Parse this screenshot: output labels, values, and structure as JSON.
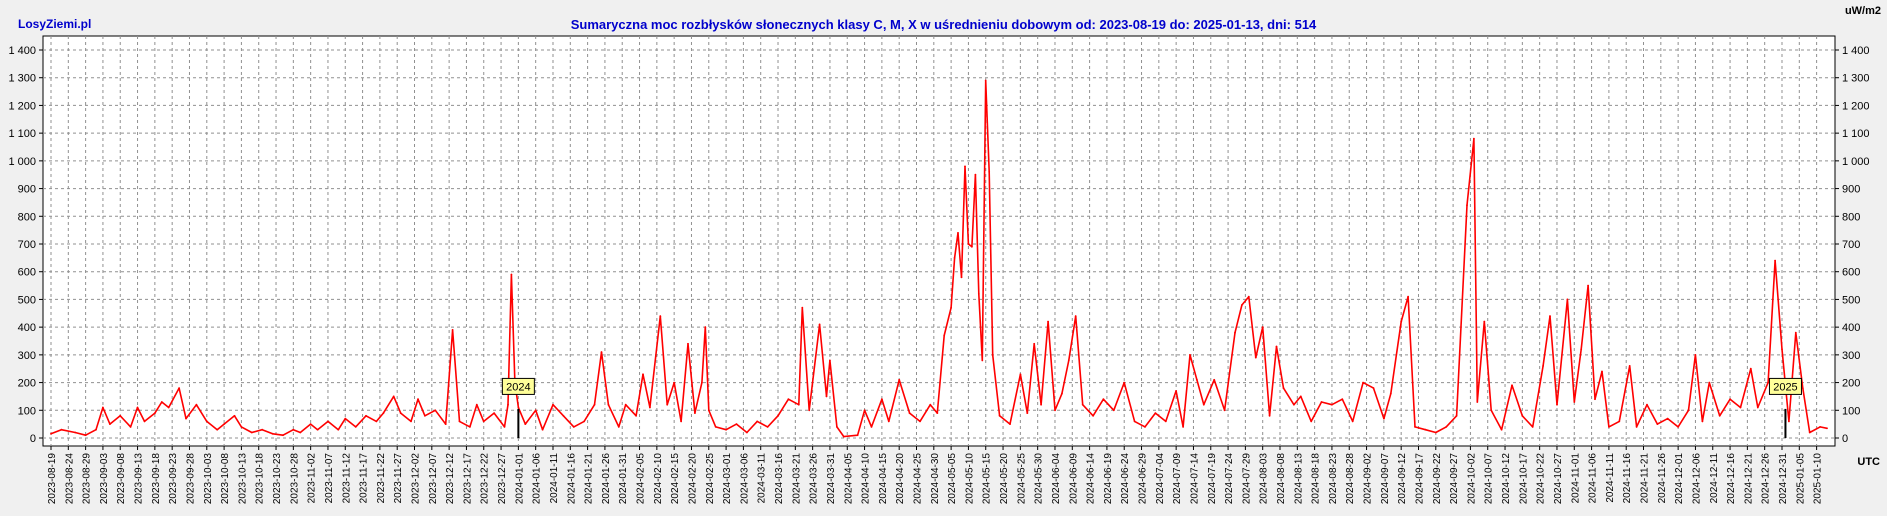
{
  "header": {
    "site": "LosyZiemi.pl",
    "title": "Sumaryczna moc rozbłysków słonecznych klasy C, M, X w uśrednieniu dobowym od: 2023-08-19 do: 2025-01-13, dni: 514",
    "unit": "uW/m2",
    "xaxis_label": "UTC"
  },
  "colors": {
    "line": "#ff0000",
    "plot_bg": "#ffffff",
    "grid": "#909090",
    "title": "#0000cc",
    "marker_bg": "#ffff99"
  },
  "chart_data": {
    "type": "line",
    "title": "Sumaryczna moc rozbłysków słonecznych klasy C, M, X w uśrednieniu dobowym od: 2023-08-19 do: 2025-01-13, dni: 514",
    "ylabel": "uW/m2",
    "xlabel": "UTC",
    "ylim": [
      0,
      1400
    ],
    "yticks": [
      0,
      100,
      200,
      300,
      400,
      500,
      600,
      700,
      800,
      900,
      1000,
      1100,
      1200,
      1300,
      1400
    ],
    "ytick_labels": [
      "0",
      "100",
      "200",
      "300",
      "400",
      "500",
      "600",
      "700",
      "800",
      "900",
      "1 000",
      "1 100",
      "1 200",
      "1 300",
      "1 400"
    ],
    "grid": true,
    "x_start": "2023-08-19",
    "x_end": "2025-01-13",
    "days": 514,
    "xtick_labels": [
      "2023-08-19",
      "2023-08-24",
      "2023-08-29",
      "2023-09-03",
      "2023-09-08",
      "2023-09-13",
      "2023-09-18",
      "2023-09-23",
      "2023-09-28",
      "2023-10-03",
      "2023-10-08",
      "2023-10-13",
      "2023-10-18",
      "2023-10-23",
      "2023-10-28",
      "2023-11-02",
      "2023-11-07",
      "2023-11-12",
      "2023-11-17",
      "2023-11-22",
      "2023-11-27",
      "2023-12-02",
      "2023-12-07",
      "2023-12-12",
      "2023-12-17",
      "2023-12-22",
      "2023-12-27",
      "2024-01-01",
      "2024-01-06",
      "2024-01-11",
      "2024-01-16",
      "2024-01-21",
      "2024-01-26",
      "2024-01-31",
      "2024-02-05",
      "2024-02-10",
      "2024-02-15",
      "2024-02-20",
      "2024-02-25",
      "2024-03-01",
      "2024-03-06",
      "2024-03-11",
      "2024-03-16",
      "2024-03-21",
      "2024-03-26",
      "2024-03-31",
      "2024-04-05",
      "2024-04-10",
      "2024-04-15",
      "2024-04-20",
      "2024-04-25",
      "2024-04-30",
      "2024-05-05",
      "2024-05-10",
      "2024-05-15",
      "2024-05-20",
      "2024-05-25",
      "2024-05-30",
      "2024-06-04",
      "2024-06-09",
      "2024-06-14",
      "2024-06-19",
      "2024-06-24",
      "2024-06-29",
      "2024-07-04",
      "2024-07-09",
      "2024-07-14",
      "2024-07-19",
      "2024-07-24",
      "2024-07-29",
      "2024-08-03",
      "2024-08-08",
      "2024-08-13",
      "2024-08-18",
      "2024-08-23",
      "2024-08-28",
      "2024-09-02",
      "2024-09-07",
      "2024-09-12",
      "2024-09-17",
      "2024-09-22",
      "2024-09-27",
      "2024-10-02",
      "2024-10-07",
      "2024-10-12",
      "2024-10-17",
      "2024-10-22",
      "2024-10-27",
      "2024-11-01",
      "2024-11-06",
      "2024-11-11",
      "2024-11-16",
      "2024-11-21",
      "2024-11-26",
      "2024-12-01",
      "2024-12-06",
      "2024-12-11",
      "2024-12-16",
      "2024-12-21",
      "2024-12-26",
      "2024-12-31",
      "2025-01-05",
      "2025-01-10"
    ],
    "year_markers": [
      {
        "label": "2024",
        "date": "2024-01-01"
      },
      {
        "label": "2025",
        "date": "2025-01-01"
      }
    ],
    "series": [
      {
        "points": [
          [
            "2023-08-19",
            15
          ],
          [
            "2023-08-22",
            30
          ],
          [
            "2023-08-26",
            20
          ],
          [
            "2023-08-29",
            10
          ],
          [
            "2023-09-01",
            30
          ],
          [
            "2023-09-03",
            110
          ],
          [
            "2023-09-05",
            50
          ],
          [
            "2023-09-08",
            80
          ],
          [
            "2023-09-11",
            40
          ],
          [
            "2023-09-13",
            110
          ],
          [
            "2023-09-15",
            60
          ],
          [
            "2023-09-18",
            90
          ],
          [
            "2023-09-20",
            130
          ],
          [
            "2023-09-22",
            110
          ],
          [
            "2023-09-25",
            180
          ],
          [
            "2023-09-27",
            70
          ],
          [
            "2023-09-30",
            120
          ],
          [
            "2023-10-03",
            60
          ],
          [
            "2023-10-06",
            30
          ],
          [
            "2023-10-08",
            50
          ],
          [
            "2023-10-11",
            80
          ],
          [
            "2023-10-13",
            40
          ],
          [
            "2023-10-16",
            20
          ],
          [
            "2023-10-19",
            30
          ],
          [
            "2023-10-22",
            15
          ],
          [
            "2023-10-25",
            10
          ],
          [
            "2023-10-28",
            30
          ],
          [
            "2023-10-30",
            20
          ],
          [
            "2023-11-02",
            50
          ],
          [
            "2023-11-04",
            30
          ],
          [
            "2023-11-07",
            60
          ],
          [
            "2023-11-10",
            30
          ],
          [
            "2023-11-12",
            70
          ],
          [
            "2023-11-15",
            40
          ],
          [
            "2023-11-18",
            80
          ],
          [
            "2023-11-21",
            60
          ],
          [
            "2023-11-23",
            90
          ],
          [
            "2023-11-26",
            150
          ],
          [
            "2023-11-28",
            90
          ],
          [
            "2023-12-01",
            60
          ],
          [
            "2023-12-03",
            140
          ],
          [
            "2023-12-05",
            80
          ],
          [
            "2023-12-08",
            100
          ],
          [
            "2023-12-11",
            50
          ],
          [
            "2023-12-13",
            390
          ],
          [
            "2023-12-15",
            60
          ],
          [
            "2023-12-18",
            40
          ],
          [
            "2023-12-20",
            120
          ],
          [
            "2023-12-22",
            60
          ],
          [
            "2023-12-25",
            90
          ],
          [
            "2023-12-28",
            40
          ],
          [
            "2023-12-29",
            120
          ],
          [
            "2023-12-30",
            590
          ],
          [
            "2023-12-31",
            200
          ],
          [
            "2024-01-01",
            110
          ],
          [
            "2024-01-03",
            50
          ],
          [
            "2024-01-06",
            100
          ],
          [
            "2024-01-08",
            30
          ],
          [
            "2024-01-11",
            120
          ],
          [
            "2024-01-14",
            80
          ],
          [
            "2024-01-17",
            40
          ],
          [
            "2024-01-20",
            60
          ],
          [
            "2024-01-23",
            120
          ],
          [
            "2024-01-25",
            310
          ],
          [
            "2024-01-27",
            120
          ],
          [
            "2024-01-30",
            40
          ],
          [
            "2024-02-01",
            120
          ],
          [
            "2024-02-04",
            80
          ],
          [
            "2024-02-06",
            230
          ],
          [
            "2024-02-08",
            110
          ],
          [
            "2024-02-11",
            440
          ],
          [
            "2024-02-13",
            120
          ],
          [
            "2024-02-15",
            200
          ],
          [
            "2024-02-17",
            60
          ],
          [
            "2024-02-19",
            340
          ],
          [
            "2024-02-21",
            90
          ],
          [
            "2024-02-23",
            200
          ],
          [
            "2024-02-24",
            400
          ],
          [
            "2024-02-25",
            100
          ],
          [
            "2024-02-27",
            40
          ],
          [
            "2024-03-01",
            30
          ],
          [
            "2024-03-04",
            50
          ],
          [
            "2024-03-07",
            20
          ],
          [
            "2024-03-10",
            60
          ],
          [
            "2024-03-13",
            40
          ],
          [
            "2024-03-16",
            80
          ],
          [
            "2024-03-19",
            140
          ],
          [
            "2024-03-22",
            120
          ],
          [
            "2024-03-23",
            470
          ],
          [
            "2024-03-25",
            100
          ],
          [
            "2024-03-28",
            410
          ],
          [
            "2024-03-30",
            150
          ],
          [
            "2024-03-31",
            280
          ],
          [
            "2024-04-02",
            40
          ],
          [
            "2024-04-04",
            5
          ],
          [
            "2024-04-08",
            10
          ],
          [
            "2024-04-10",
            100
          ],
          [
            "2024-04-12",
            40
          ],
          [
            "2024-04-15",
            140
          ],
          [
            "2024-04-17",
            60
          ],
          [
            "2024-04-20",
            210
          ],
          [
            "2024-04-23",
            90
          ],
          [
            "2024-04-26",
            60
          ],
          [
            "2024-04-29",
            120
          ],
          [
            "2024-05-01",
            90
          ],
          [
            "2024-05-03",
            370
          ],
          [
            "2024-05-05",
            470
          ],
          [
            "2024-05-06",
            650
          ],
          [
            "2024-05-07",
            740
          ],
          [
            "2024-05-08",
            580
          ],
          [
            "2024-05-09",
            980
          ],
          [
            "2024-05-10",
            700
          ],
          [
            "2024-05-11",
            690
          ],
          [
            "2024-05-12",
            950
          ],
          [
            "2024-05-13",
            520
          ],
          [
            "2024-05-14",
            280
          ],
          [
            "2024-05-15",
            1290
          ],
          [
            "2024-05-16",
            960
          ],
          [
            "2024-05-17",
            300
          ],
          [
            "2024-05-19",
            80
          ],
          [
            "2024-05-22",
            50
          ],
          [
            "2024-05-25",
            230
          ],
          [
            "2024-05-27",
            90
          ],
          [
            "2024-05-29",
            340
          ],
          [
            "2024-05-31",
            120
          ],
          [
            "2024-06-02",
            420
          ],
          [
            "2024-06-04",
            100
          ],
          [
            "2024-06-06",
            160
          ],
          [
            "2024-06-08",
            280
          ],
          [
            "2024-06-10",
            440
          ],
          [
            "2024-06-12",
            120
          ],
          [
            "2024-06-15",
            80
          ],
          [
            "2024-06-18",
            140
          ],
          [
            "2024-06-21",
            100
          ],
          [
            "2024-06-24",
            200
          ],
          [
            "2024-06-27",
            60
          ],
          [
            "2024-06-30",
            40
          ],
          [
            "2024-07-03",
            90
          ],
          [
            "2024-07-06",
            60
          ],
          [
            "2024-07-09",
            170
          ],
          [
            "2024-07-11",
            40
          ],
          [
            "2024-07-13",
            300
          ],
          [
            "2024-07-15",
            210
          ],
          [
            "2024-07-17",
            120
          ],
          [
            "2024-07-20",
            210
          ],
          [
            "2024-07-23",
            100
          ],
          [
            "2024-07-26",
            380
          ],
          [
            "2024-07-28",
            480
          ],
          [
            "2024-07-30",
            510
          ],
          [
            "2024-08-01",
            290
          ],
          [
            "2024-08-03",
            400
          ],
          [
            "2024-08-05",
            80
          ],
          [
            "2024-08-07",
            330
          ],
          [
            "2024-08-09",
            180
          ],
          [
            "2024-08-12",
            120
          ],
          [
            "2024-08-14",
            150
          ],
          [
            "2024-08-17",
            60
          ],
          [
            "2024-08-20",
            130
          ],
          [
            "2024-08-23",
            120
          ],
          [
            "2024-08-26",
            140
          ],
          [
            "2024-08-29",
            60
          ],
          [
            "2024-09-01",
            200
          ],
          [
            "2024-09-04",
            180
          ],
          [
            "2024-09-07",
            70
          ],
          [
            "2024-09-09",
            160
          ],
          [
            "2024-09-12",
            420
          ],
          [
            "2024-09-14",
            510
          ],
          [
            "2024-09-16",
            40
          ],
          [
            "2024-09-19",
            30
          ],
          [
            "2024-09-22",
            20
          ],
          [
            "2024-09-25",
            40
          ],
          [
            "2024-09-28",
            80
          ],
          [
            "2024-10-01",
            840
          ],
          [
            "2024-10-03",
            1080
          ],
          [
            "2024-10-04",
            130
          ],
          [
            "2024-10-06",
            420
          ],
          [
            "2024-10-08",
            100
          ],
          [
            "2024-10-11",
            30
          ],
          [
            "2024-10-14",
            190
          ],
          [
            "2024-10-17",
            80
          ],
          [
            "2024-10-20",
            40
          ],
          [
            "2024-10-23",
            260
          ],
          [
            "2024-10-25",
            440
          ],
          [
            "2024-10-27",
            120
          ],
          [
            "2024-10-30",
            500
          ],
          [
            "2024-11-01",
            130
          ],
          [
            "2024-11-03",
            320
          ],
          [
            "2024-11-05",
            550
          ],
          [
            "2024-11-07",
            140
          ],
          [
            "2024-11-09",
            240
          ],
          [
            "2024-11-11",
            40
          ],
          [
            "2024-11-14",
            60
          ],
          [
            "2024-11-17",
            260
          ],
          [
            "2024-11-19",
            40
          ],
          [
            "2024-11-22",
            120
          ],
          [
            "2024-11-25",
            50
          ],
          [
            "2024-11-28",
            70
          ],
          [
            "2024-12-01",
            40
          ],
          [
            "2024-12-04",
            100
          ],
          [
            "2024-12-06",
            300
          ],
          [
            "2024-12-08",
            60
          ],
          [
            "2024-12-10",
            200
          ],
          [
            "2024-12-13",
            80
          ],
          [
            "2024-12-16",
            140
          ],
          [
            "2024-12-19",
            110
          ],
          [
            "2024-12-22",
            250
          ],
          [
            "2024-12-24",
            110
          ],
          [
            "2024-12-27",
            200
          ],
          [
            "2024-12-29",
            640
          ],
          [
            "2024-12-31",
            320
          ],
          [
            "2025-01-02",
            60
          ],
          [
            "2025-01-04",
            380
          ],
          [
            "2025-01-06",
            180
          ],
          [
            "2025-01-08",
            20
          ],
          [
            "2025-01-11",
            40
          ],
          [
            "2025-01-13",
            35
          ]
        ]
      }
    ]
  }
}
